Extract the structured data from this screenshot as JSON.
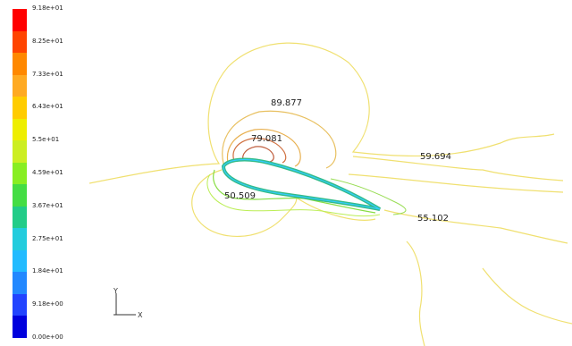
{
  "colorbar": {
    "labels": [
      "9.18e+01",
      "8.25e+01",
      "7.33e+01",
      "6.43e+01",
      "5.5e+01",
      "4.59e+01",
      "3.67e+01",
      "2.75e+01",
      "1.84e+01",
      "9.18e+00",
      "0.00e+00"
    ],
    "colors": [
      "#ff0000",
      "#ff4400",
      "#ff8800",
      "#ffaa22",
      "#ffcc00",
      "#eeee00",
      "#ccee22",
      "#88ee22",
      "#44dd44",
      "#22cc88",
      "#22ccdd",
      "#22bbff",
      "#2288ff",
      "#2244ff",
      "#0000dd"
    ]
  },
  "contour_labels": [
    "89.877",
    "79.081",
    "50.509",
    "59.694",
    "55.102"
  ],
  "axes": {
    "y": "Y",
    "x": "X"
  },
  "colors": {
    "outer": "#f0e070",
    "mid": "#e8c060",
    "inner": "#d07040",
    "green": "#88dd44",
    "foil_edge": "#33bb88"
  }
}
